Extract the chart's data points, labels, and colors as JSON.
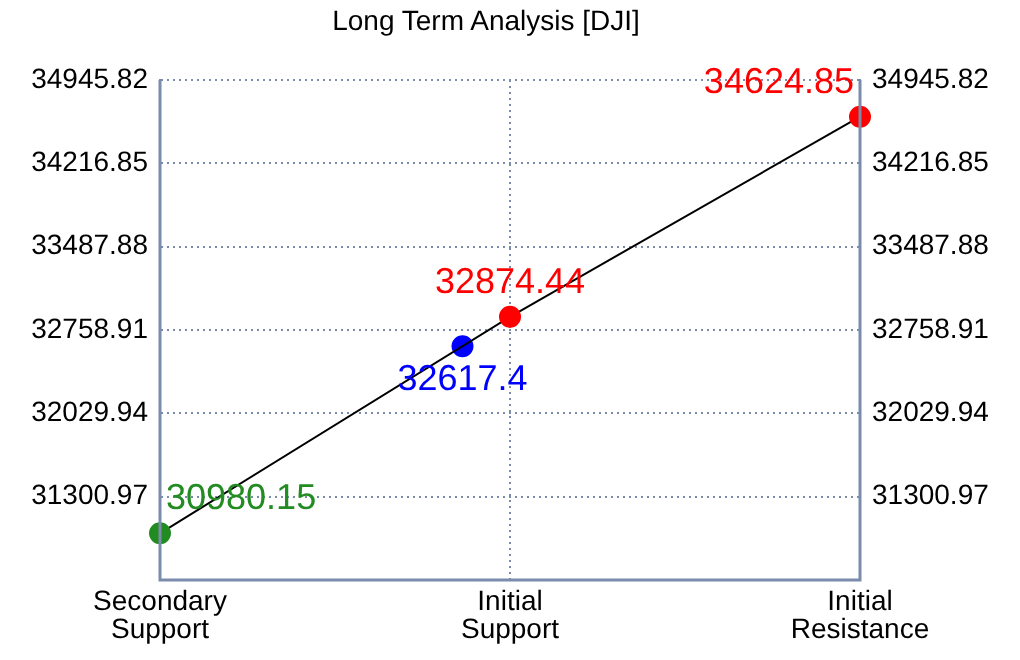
{
  "chart_data": {
    "type": "line",
    "title": "Long Term Analysis [DJI]",
    "categories": [
      "Secondary Support",
      "Initial Support",
      "Initial Resistance"
    ],
    "ylim": [
      30572.0,
      34945.82
    ],
    "yticks": [
      31300.97,
      32029.94,
      32758.91,
      33487.88,
      34216.85,
      34945.82
    ],
    "y2lim": [
      30572.0,
      34945.82
    ],
    "y2ticks": [
      31300.97,
      32029.94,
      32758.91,
      33487.88,
      34216.85,
      34945.82
    ],
    "series": [
      {
        "color": "#000000",
        "values": [
          30980.15,
          32874.44,
          34624.85
        ],
        "colors": [
          "#228b22",
          "#ff0000",
          "#ff0000"
        ]
      },
      {
        "type": "scatter",
        "color": "#0000ff",
        "values": [
          null,
          32617.4,
          null
        ]
      }
    ],
    "data_labels": true,
    "grid": true,
    "marker": "circle",
    "line_style": "solid"
  }
}
